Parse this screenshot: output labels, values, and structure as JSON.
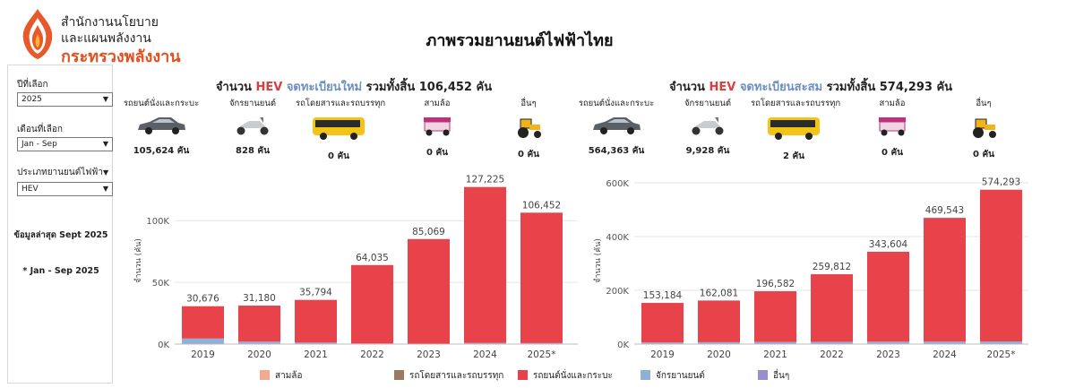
{
  "header": {
    "logo_line1": "สำนักงานนโยบาย",
    "logo_line2": "และแผนพลังงาน",
    "logo_line3": "กระทรวงพลังงาน",
    "title": "ภาพรวมยานยนต์ไฟฟ้าไทย"
  },
  "filters": {
    "year_label": "ปีที่เลือก",
    "year_value": "2025",
    "month_label": "เดือนที่เลือก",
    "month_value": "Jan - Sep",
    "type_label": "ประเภทยานยนต์ไฟฟ้า",
    "type_value": "HEV",
    "latest_note": "ข้อมูลล่าสุด Sept 2025",
    "period_note": "* Jan - Sep 2025"
  },
  "left_panel": {
    "heading_pre": "จำนวน",
    "heading_type": "HEV",
    "heading_kind": "จดทะเบียนใหม่",
    "heading_post": "รวมทั้งสิ้น 106,452 คัน",
    "categories": [
      {
        "label": "รถยนต์นั่งและกระบะ",
        "value": "105,624 คัน",
        "icon": "car-icon"
      },
      {
        "label": "จักรยานยนต์",
        "value": "828 คัน",
        "icon": "motorcycle-icon"
      },
      {
        "label": "รถโดยสารและรถบรรทุก",
        "value": "0 คัน",
        "icon": "bus-icon"
      },
      {
        "label": "สามล้อ",
        "value": "0 คัน",
        "icon": "tuktuk-icon"
      },
      {
        "label": "อื่นๆ",
        "value": "0 คัน",
        "icon": "tractor-icon"
      }
    ]
  },
  "right_panel": {
    "heading_pre": "จำนวน",
    "heading_type": "HEV",
    "heading_kind": "จดทะเบียนสะสม",
    "heading_post": "รวมทั้งสิ้น 574,293 คัน",
    "categories": [
      {
        "label": "รถยนต์นั่งและกระบะ",
        "value": "564,363 คัน",
        "icon": "car-icon"
      },
      {
        "label": "จักรยานยนต์",
        "value": "9,928 คัน",
        "icon": "motorcycle-icon"
      },
      {
        "label": "รถโดยสารและรถบรรทุก",
        "value": "2 คัน",
        "icon": "bus-icon"
      },
      {
        "label": "สามล้อ",
        "value": "0 คัน",
        "icon": "tuktuk-icon"
      },
      {
        "label": "อื่นๆ",
        "value": "0 คัน",
        "icon": "tractor-icon"
      }
    ]
  },
  "legend": [
    {
      "name": "สามล้อ",
      "color": "#f5a992"
    },
    {
      "name": "รถโดยสารและรถบรรทุก",
      "color": "#9c7a62"
    },
    {
      "name": "รถยนต์นั่งและกระบะ",
      "color": "#e8434a"
    },
    {
      "name": "จักรยานยนต์",
      "color": "#8fb0d8"
    },
    {
      "name": "อื่นๆ",
      "color": "#9b8ecf"
    }
  ],
  "chart_data": [
    {
      "type": "bar",
      "stacked": true,
      "ylabel": "จำนวน (คัน)",
      "xlabel": "",
      "categories": [
        "2019",
        "2020",
        "2021",
        "2022",
        "2023",
        "2024",
        "2025*"
      ],
      "totals": [
        30676,
        31180,
        35794,
        64035,
        85069,
        127225,
        106452
      ],
      "total_labels": [
        "30,676",
        "31,180",
        "35,794",
        "64,035",
        "85,069",
        "127,225",
        "106,452"
      ],
      "series": [
        {
          "name": "จักรยานยนต์",
          "values": [
            4500,
            2000,
            1200,
            500,
            300,
            900,
            828
          ]
        },
        {
          "name": "รถยนต์นั่งและกระบะ",
          "values": [
            26176,
            29180,
            34594,
            63535,
            84769,
            126325,
            105624
          ]
        }
      ],
      "yticks": [
        0,
        50000,
        100000
      ],
      "ytick_labels": [
        "0K",
        "50K",
        "100K"
      ],
      "ylim": [
        0,
        135000
      ],
      "grid": true
    },
    {
      "type": "bar",
      "stacked": true,
      "ylabel": "จำนวน (คัน)",
      "xlabel": "",
      "categories": [
        "2019",
        "2020",
        "2021",
        "2022",
        "2023",
        "2024",
        "2025*"
      ],
      "totals": [
        153184,
        162081,
        196582,
        259812,
        343604,
        469543,
        574293
      ],
      "total_labels": [
        "153,184",
        "162,081",
        "196,582",
        "259,812",
        "343,604",
        "469,543",
        "574,293"
      ],
      "series": [
        {
          "name": "จักรยานยนต์",
          "values": [
            6000,
            7000,
            8000,
            8500,
            9000,
            9300,
            9928
          ]
        },
        {
          "name": "รถยนต์นั่งและกระบะ",
          "values": [
            147184,
            155081,
            188582,
            251312,
            334604,
            460243,
            564363
          ]
        }
      ],
      "yticks": [
        0,
        200000,
        400000,
        600000
      ],
      "ytick_labels": [
        "0K",
        "200K",
        "400K",
        "600K"
      ],
      "ylim": [
        0,
        620000
      ],
      "grid": true
    }
  ]
}
